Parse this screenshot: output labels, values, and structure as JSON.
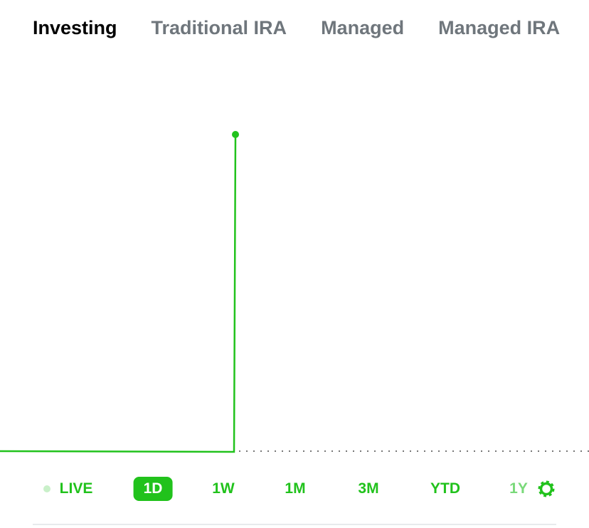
{
  "tabs": [
    "Investing",
    "Traditional IRA",
    "Managed",
    "Managed IRA"
  ],
  "selected_tab": 0,
  "ranges": [
    "LIVE",
    "1D",
    "1W",
    "1M",
    "3M",
    "YTD",
    "1Y"
  ],
  "selected_range": 1
}
